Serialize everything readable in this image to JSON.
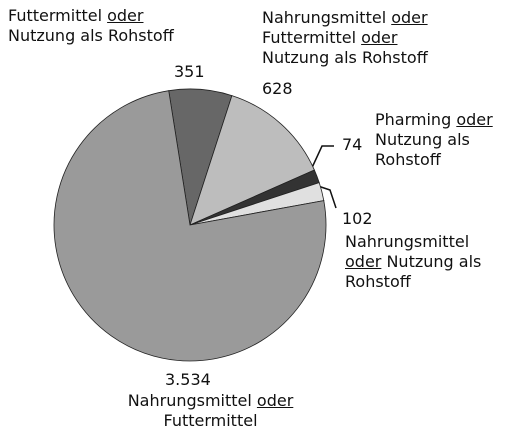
{
  "chart_data": {
    "type": "pie",
    "categories": [
      "Futtermittel oder Nutzung als Rohstoff",
      "Nahrungsmittel oder Futtermittel oder Nutzung als Rohstoff",
      "Pharming oder Nutzung als Rohstoff",
      "Nahrungsmittel oder Nutzung als Rohstoff",
      "Nahrungsmittel oder Futtermittel"
    ],
    "values": [
      351,
      628,
      74,
      102,
      3534
    ],
    "value_labels": [
      "351",
      "628",
      "74",
      "102",
      "3.534"
    ],
    "colors": [
      "#676767",
      "#bdbdbd",
      "#333333",
      "#e0e0e0",
      "#9a9a9a"
    ]
  }
}
